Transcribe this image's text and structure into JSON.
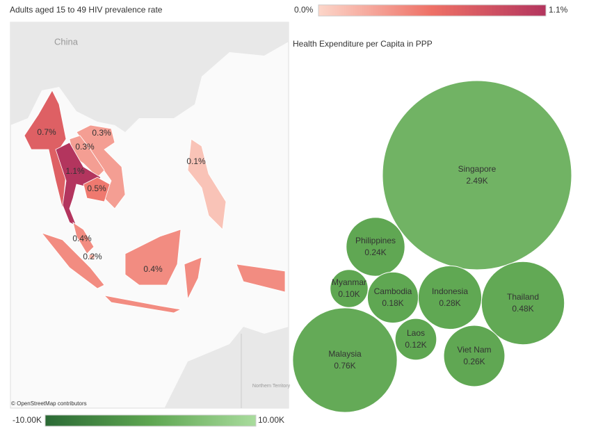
{
  "chart_data": [
    {
      "type": "map",
      "title": "Adults aged 15 to 49 HIV prevalence rate",
      "values": [
        0.7,
        0.3,
        0.3,
        1.1,
        0.5,
        0.1,
        0.4,
        0.2,
        0.4
      ],
      "value_labels": [
        "0.7%",
        "0.3%",
        "0.3%",
        "1.1%",
        "0.5%",
        "0.1%",
        "0.4%",
        "0.2%",
        "0.4%"
      ],
      "legend_ticks": [
        {
          "value": 0,
          "label": "0.0%"
        },
        {
          "value": 1.1,
          "label": "1.1%"
        }
      ],
      "colors": [
        "#fcd6c9",
        "#ee7066",
        "#b3355e"
      ],
      "place_labels": [
        "China",
        "Northern Territory"
      ],
      "attribution": "© OpenStreetMap contributors"
    },
    {
      "type": "bubble",
      "title": "Health Expenditure per Capita in PPP",
      "categories": [
        "Singapore",
        "Philippines",
        "Myanmar",
        "Cambodia",
        "Indonesia",
        "Thailand",
        "Malaysia",
        "Laos",
        "Viet Nam"
      ],
      "values": [
        2490,
        240,
        100,
        180,
        280,
        480,
        760,
        120,
        260
      ],
      "value_labels": [
        "2.49K",
        "0.24K",
        "0.10K",
        "0.18K",
        "0.28K",
        "0.48K",
        "0.76K",
        "0.12K",
        "0.26K"
      ],
      "legend_ticks": [
        {
          "value": -10000,
          "label": "-10.00K"
        },
        {
          "value": 10000,
          "label": "10.00K"
        }
      ],
      "colors": [
        "#2b6a35",
        "#5ea651",
        "#a9dc9d"
      ]
    }
  ]
}
